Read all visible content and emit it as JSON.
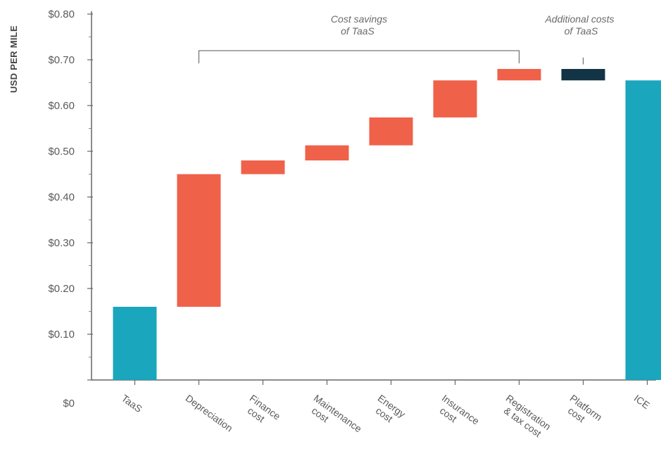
{
  "chart_data": {
    "type": "bar",
    "ylabel": "USD PER MILE",
    "xlabel": "",
    "ylim": [
      0,
      0.8
    ],
    "yticks": [
      "$0",
      "$0.10",
      "$0.20",
      "$0.30",
      "$0.40",
      "$0.50",
      "$0.60",
      "$0.70",
      "$0.80"
    ],
    "colors": {
      "total": "#1aa6bd",
      "saving": "#f0614a",
      "additional": "#123445"
    },
    "bars": [
      {
        "label": [
          "TaaS"
        ],
        "kind": "total",
        "start": 0,
        "end": 0.16
      },
      {
        "label": [
          "Depreciation"
        ],
        "kind": "saving",
        "start": 0.16,
        "end": 0.45
      },
      {
        "label": [
          "Finance",
          "cost"
        ],
        "kind": "saving",
        "start": 0.45,
        "end": 0.48
      },
      {
        "label": [
          "Maintenance",
          "cost"
        ],
        "kind": "saving",
        "start": 0.48,
        "end": 0.513
      },
      {
        "label": [
          "Energy",
          "cost"
        ],
        "kind": "saving",
        "start": 0.513,
        "end": 0.574
      },
      {
        "label": [
          "Insurance",
          "cost"
        ],
        "kind": "saving",
        "start": 0.574,
        "end": 0.655
      },
      {
        "label": [
          "Registration",
          "& tax cost"
        ],
        "kind": "saving",
        "start": 0.655,
        "end": 0.68
      },
      {
        "label": [
          "Platform",
          "cost"
        ],
        "kind": "additional",
        "start": 0.655,
        "end": 0.68
      },
      {
        "label": [
          "ICE"
        ],
        "kind": "total",
        "start": 0,
        "end": 0.655
      }
    ],
    "annotations": [
      {
        "text": [
          "Cost savings",
          "of TaaS"
        ]
      },
      {
        "text": [
          "Additional costs",
          "of TaaS"
        ]
      }
    ]
  }
}
